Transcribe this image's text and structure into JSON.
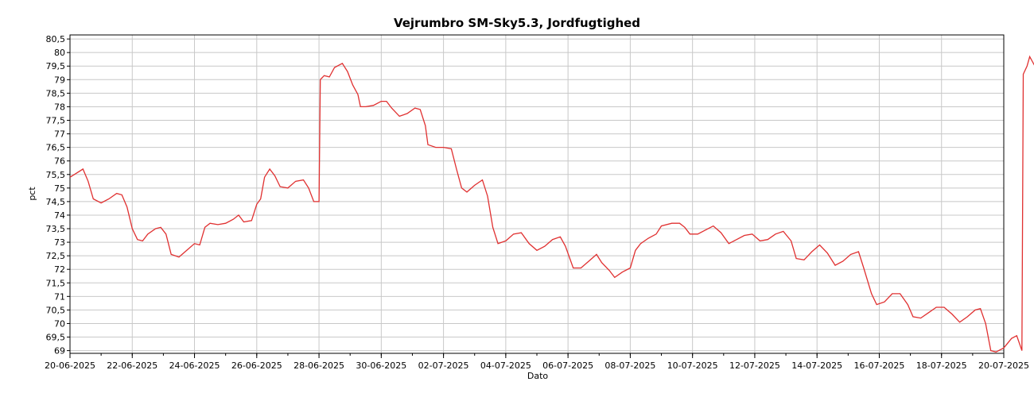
{
  "chart_data": {
    "type": "line",
    "title": "Vejrumbro SM-Sky5.3, Jordfugtighed",
    "xlabel": "Dato",
    "ylabel": "pct",
    "xlim": [
      "2025-06-20",
      "2025-07-20"
    ],
    "ylim": [
      68.9,
      80.65
    ],
    "grid": true,
    "x_ticks": [
      "2025-06-20",
      "2025-06-22",
      "2025-06-24",
      "2025-06-26",
      "2025-06-28",
      "2025-06-30",
      "2025-07-02",
      "2025-07-04",
      "2025-07-06",
      "2025-07-08",
      "2025-07-10",
      "2025-07-12",
      "2025-07-14",
      "2025-07-16",
      "2025-07-18",
      "2025-07-20"
    ],
    "x_tick_labels": [
      "20-06-2025",
      "22-06-2025",
      "24-06-2025",
      "26-06-2025",
      "28-06-2025",
      "30-06-2025",
      "02-07-2025",
      "04-07-2025",
      "06-07-2025",
      "08-07-2025",
      "10-07-2025",
      "12-07-2025",
      "14-07-2025",
      "16-07-2025",
      "18-07-2025",
      "20-07-2025"
    ],
    "y_ticks": [
      69,
      69.5,
      70,
      70.5,
      71,
      71.5,
      72,
      72.5,
      73,
      73.5,
      74,
      74.5,
      75,
      75.5,
      76,
      76.5,
      77,
      77.5,
      78,
      78.5,
      79,
      79.5,
      80,
      80.5
    ],
    "y_tick_labels": [
      "69",
      "69,5",
      "70",
      "70,5",
      "71",
      "71,5",
      "72",
      "72,5",
      "73",
      "73,5",
      "74",
      "74,5",
      "75",
      "75,5",
      "76",
      "76,5",
      "77",
      "77,5",
      "78",
      "78,5",
      "79",
      "79,5",
      "80",
      "80,5"
    ],
    "series": [
      {
        "color": "#e03030",
        "points": [
          [
            "2025-06-20T00:00",
            75.4
          ],
          [
            "2025-06-20T05:00",
            75.55
          ],
          [
            "2025-06-20T10:00",
            75.7
          ],
          [
            "2025-06-20T14:00",
            75.25
          ],
          [
            "2025-06-20T18:00",
            74.6
          ],
          [
            "2025-06-21T00:00",
            74.45
          ],
          [
            "2025-06-21T06:00",
            74.6
          ],
          [
            "2025-06-21T12:00",
            74.8
          ],
          [
            "2025-06-21T16:00",
            74.75
          ],
          [
            "2025-06-21T20:00",
            74.3
          ],
          [
            "2025-06-22T00:00",
            73.5
          ],
          [
            "2025-06-22T04:00",
            73.1
          ],
          [
            "2025-06-22T08:00",
            73.05
          ],
          [
            "2025-06-22T12:00",
            73.3
          ],
          [
            "2025-06-22T18:00",
            73.5
          ],
          [
            "2025-06-22T22:00",
            73.55
          ],
          [
            "2025-06-23T02:00",
            73.3
          ],
          [
            "2025-06-23T06:00",
            72.55
          ],
          [
            "2025-06-23T12:00",
            72.45
          ],
          [
            "2025-06-23T18:00",
            72.7
          ],
          [
            "2025-06-24T00:00",
            72.95
          ],
          [
            "2025-06-24T04:00",
            72.9
          ],
          [
            "2025-06-24T08:00",
            73.55
          ],
          [
            "2025-06-24T12:00",
            73.7
          ],
          [
            "2025-06-24T18:00",
            73.65
          ],
          [
            "2025-06-25T00:00",
            73.7
          ],
          [
            "2025-06-25T06:00",
            73.85
          ],
          [
            "2025-06-25T10:00",
            74.0
          ],
          [
            "2025-06-25T14:00",
            73.75
          ],
          [
            "2025-06-25T20:00",
            73.8
          ],
          [
            "2025-06-26T00:00",
            74.4
          ],
          [
            "2025-06-26T03:00",
            74.6
          ],
          [
            "2025-06-26T06:00",
            75.4
          ],
          [
            "2025-06-26T10:00",
            75.7
          ],
          [
            "2025-06-26T14:00",
            75.45
          ],
          [
            "2025-06-26T18:00",
            75.05
          ],
          [
            "2025-06-27T00:00",
            75.0
          ],
          [
            "2025-06-27T06:00",
            75.25
          ],
          [
            "2025-06-27T12:00",
            75.3
          ],
          [
            "2025-06-27T16:00",
            75.0
          ],
          [
            "2025-06-27T20:00",
            74.5
          ],
          [
            "2025-06-28T00:00",
            74.5
          ],
          [
            "2025-06-28T01:00",
            79.0
          ],
          [
            "2025-06-28T04:00",
            79.15
          ],
          [
            "2025-06-28T08:00",
            79.1
          ],
          [
            "2025-06-28T12:00",
            79.45
          ],
          [
            "2025-06-28T18:00",
            79.6
          ],
          [
            "2025-06-28T22:00",
            79.3
          ],
          [
            "2025-06-29T02:00",
            78.8
          ],
          [
            "2025-06-29T06:00",
            78.45
          ],
          [
            "2025-06-29T08:00",
            78.0
          ],
          [
            "2025-06-29T12:00",
            78.0
          ],
          [
            "2025-06-29T18:00",
            78.05
          ],
          [
            "2025-06-30T00:00",
            78.2
          ],
          [
            "2025-06-30T04:00",
            78.2
          ],
          [
            "2025-06-30T08:00",
            77.95
          ],
          [
            "2025-06-30T14:00",
            77.65
          ],
          [
            "2025-06-30T20:00",
            77.75
          ],
          [
            "2025-07-01T02:00",
            77.95
          ],
          [
            "2025-07-01T06:00",
            77.9
          ],
          [
            "2025-07-01T10:00",
            77.3
          ],
          [
            "2025-07-01T12:00",
            76.6
          ],
          [
            "2025-07-01T18:00",
            76.5
          ],
          [
            "2025-07-02T00:00",
            76.5
          ],
          [
            "2025-07-02T06:00",
            76.45
          ],
          [
            "2025-07-02T10:00",
            75.7
          ],
          [
            "2025-07-02T14:00",
            75.0
          ],
          [
            "2025-07-02T18:00",
            74.85
          ],
          [
            "2025-07-03T00:00",
            75.1
          ],
          [
            "2025-07-03T06:00",
            75.3
          ],
          [
            "2025-07-03T10:00",
            74.7
          ],
          [
            "2025-07-03T14:00",
            73.55
          ],
          [
            "2025-07-03T18:00",
            72.95
          ],
          [
            "2025-07-04T00:00",
            73.05
          ],
          [
            "2025-07-04T06:00",
            73.3
          ],
          [
            "2025-07-04T12:00",
            73.35
          ],
          [
            "2025-07-04T18:00",
            72.95
          ],
          [
            "2025-07-05T00:00",
            72.7
          ],
          [
            "2025-07-05T06:00",
            72.85
          ],
          [
            "2025-07-05T12:00",
            73.1
          ],
          [
            "2025-07-05T18:00",
            73.2
          ],
          [
            "2025-07-05T22:00",
            72.85
          ],
          [
            "2025-07-06T04:00",
            72.05
          ],
          [
            "2025-07-06T10:00",
            72.05
          ],
          [
            "2025-07-06T16:00",
            72.3
          ],
          [
            "2025-07-06T22:00",
            72.55
          ],
          [
            "2025-07-07T02:00",
            72.25
          ],
          [
            "2025-07-07T08:00",
            71.95
          ],
          [
            "2025-07-07T12:00",
            71.7
          ],
          [
            "2025-07-07T18:00",
            71.9
          ],
          [
            "2025-07-08T00:00",
            72.05
          ],
          [
            "2025-07-08T04:00",
            72.7
          ],
          [
            "2025-07-08T08:00",
            72.95
          ],
          [
            "2025-07-08T14:00",
            73.15
          ],
          [
            "2025-07-08T20:00",
            73.3
          ],
          [
            "2025-07-09T00:00",
            73.6
          ],
          [
            "2025-07-09T08:00",
            73.7
          ],
          [
            "2025-07-09T14:00",
            73.7
          ],
          [
            "2025-07-09T18:00",
            73.55
          ],
          [
            "2025-07-09T22:00",
            73.3
          ],
          [
            "2025-07-10T04:00",
            73.3
          ],
          [
            "2025-07-10T10:00",
            73.45
          ],
          [
            "2025-07-10T16:00",
            73.6
          ],
          [
            "2025-07-10T22:00",
            73.35
          ],
          [
            "2025-07-11T04:00",
            72.95
          ],
          [
            "2025-07-11T10:00",
            73.1
          ],
          [
            "2025-07-11T16:00",
            73.25
          ],
          [
            "2025-07-11T22:00",
            73.3
          ],
          [
            "2025-07-12T04:00",
            73.05
          ],
          [
            "2025-07-12T10:00",
            73.1
          ],
          [
            "2025-07-12T16:00",
            73.3
          ],
          [
            "2025-07-12T22:00",
            73.4
          ],
          [
            "2025-07-13T04:00",
            73.05
          ],
          [
            "2025-07-13T08:00",
            72.4
          ],
          [
            "2025-07-13T14:00",
            72.35
          ],
          [
            "2025-07-13T20:00",
            72.65
          ],
          [
            "2025-07-14T02:00",
            72.9
          ],
          [
            "2025-07-14T08:00",
            72.6
          ],
          [
            "2025-07-14T14:00",
            72.15
          ],
          [
            "2025-07-14T20:00",
            72.3
          ],
          [
            "2025-07-15T02:00",
            72.55
          ],
          [
            "2025-07-15T08:00",
            72.65
          ],
          [
            "2025-07-15T12:00",
            72.05
          ],
          [
            "2025-07-15T18:00",
            71.1
          ],
          [
            "2025-07-15T22:00",
            70.7
          ],
          [
            "2025-07-16T04:00",
            70.8
          ],
          [
            "2025-07-16T10:00",
            71.1
          ],
          [
            "2025-07-16T16:00",
            71.1
          ],
          [
            "2025-07-16T22:00",
            70.7
          ],
          [
            "2025-07-17T02:00",
            70.25
          ],
          [
            "2025-07-17T08:00",
            70.2
          ],
          [
            "2025-07-17T14:00",
            70.4
          ],
          [
            "2025-07-17T20:00",
            70.6
          ],
          [
            "2025-07-18T02:00",
            70.6
          ],
          [
            "2025-07-18T08:00",
            70.35
          ],
          [
            "2025-07-18T14:00",
            70.05
          ],
          [
            "2025-07-18T20:00",
            70.25
          ],
          [
            "2025-07-19T02:00",
            70.5
          ],
          [
            "2025-07-19T06:00",
            70.55
          ],
          [
            "2025-07-19T10:00",
            70.0
          ],
          [
            "2025-07-19T14:00",
            69.0
          ],
          [
            "2025-07-19T18:00",
            68.95
          ],
          [
            "2025-07-20T00:00",
            69.1
          ],
          [
            "2025-07-20T06:00",
            69.45
          ],
          [
            "2025-07-20T10:00",
            69.55
          ],
          [
            "2025-07-20T14:00",
            69.0
          ],
          [
            "2025-07-20T15:00",
            79.2
          ],
          [
            "2025-07-20T18:00",
            79.5
          ],
          [
            "2025-07-20T20:00",
            79.85
          ],
          [
            "2025-07-21T00:00",
            79.5
          ]
        ]
      }
    ]
  }
}
